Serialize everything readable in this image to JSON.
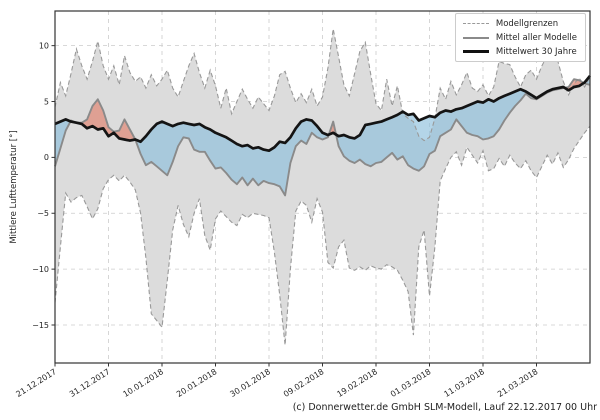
{
  "footer": "(c) Donnerwetter.de GmbH SLM-Modell, Lauf 22.12.2017 00 Uhr",
  "colors": {
    "envelope_fill": "#dcdcdc",
    "envelope_edge": "#999999",
    "model_mean_line": "#8a8a8a",
    "mean30_line": "#141414",
    "warm_fill": "rgba(225,128,108,0.65)",
    "cold_fill": "rgba(140,190,220,0.65)",
    "grid": "#cccccc",
    "frame": "#333333",
    "text": "#262626"
  },
  "chart_data": {
    "type": "line",
    "title": "",
    "xlabel": "",
    "ylabel": "Mittlere Lufttemperatur [°]",
    "grid": true,
    "xlim_days": [
      0,
      100
    ],
    "ylim": [
      -18.4,
      13.1
    ],
    "x": {
      "start_date": "21.12.2017",
      "end_date": "31.03.2018",
      "step_days": 1,
      "n_points": 101
    },
    "x_tick_days": [
      0,
      10,
      20,
      30,
      40,
      50,
      60,
      70,
      80,
      90
    ],
    "x_tick_labels": [
      "21.12.2017",
      "31.12.2017",
      "10.01.2018",
      "20.01.2018",
      "30.01.2018",
      "09.02.2018",
      "19.02.2018",
      "01.03.2018",
      "11.03.2018",
      "21.03.2018"
    ],
    "y_tick_values": [
      10,
      5,
      0,
      -5,
      -10,
      -15
    ],
    "y_tick_labels": [
      "10",
      "5",
      "0",
      "−5",
      "−10",
      "−15"
    ],
    "legend": {
      "position": "upper right",
      "entries": [
        "Modellgrenzen",
        "Mittel aller Modelle",
        "Mittelwert 30 Jahre"
      ]
    },
    "series": [
      {
        "name": "Modellgrenzen (obere Grenze)",
        "role": "upper_bound",
        "line": "dashed-gray",
        "values": [
          4.5,
          6.7,
          5.5,
          7.5,
          9.7,
          8.2,
          7.0,
          8.6,
          10.4,
          8.2,
          7.0,
          8.2,
          6.5,
          9.1,
          7.6,
          6.8,
          7.2,
          6.2,
          7.4,
          6.4,
          7.0,
          7.8,
          6.2,
          5.4,
          6.8,
          8.2,
          9.3,
          7.6,
          6.2,
          7.8,
          6.4,
          4.4,
          6.2,
          3.9,
          5.0,
          6.1,
          5.2,
          4.4,
          5.4,
          4.8,
          4.2,
          5.5,
          7.4,
          7.7,
          6.2,
          4.9,
          5.7,
          4.9,
          6.1,
          4.6,
          5.4,
          8.0,
          11.5,
          9.0,
          6.5,
          5.5,
          7.5,
          9.5,
          10.3,
          7.5,
          4.8,
          4.2,
          7.0,
          4.6,
          6.4,
          3.9,
          3.5,
          3.2,
          1.9,
          1.5,
          1.8,
          3.5,
          6.2,
          5.2,
          6.8,
          5.6,
          6.5,
          7.6,
          6.2,
          5.9,
          6.5,
          5.5,
          6.3,
          8.6,
          8.4,
          8.3,
          7.2,
          6.3,
          7.4,
          7.8,
          7.0,
          8.2,
          9.1,
          8.8,
          8.6,
          6.8,
          5.6,
          6.6,
          7.1,
          6.3,
          7.2
        ]
      },
      {
        "name": "Modellgrenzen (untere Grenze)",
        "role": "lower_bound",
        "line": "dashed-gray",
        "values": [
          -13.0,
          -8.0,
          -3.2,
          -4.0,
          -3.6,
          -3.4,
          -4.4,
          -5.5,
          -4.6,
          -2.8,
          -2.0,
          -1.6,
          -2.1,
          -1.6,
          -2.2,
          -2.9,
          -5.0,
          -9.0,
          -14.0,
          -14.6,
          -15.2,
          -11.0,
          -6.5,
          -4.3,
          -6.0,
          -7.1,
          -5.0,
          -3.7,
          -7.0,
          -8.3,
          -5.5,
          -4.8,
          -5.3,
          -5.8,
          -6.1,
          -5.1,
          -5.4,
          -5.0,
          -5.1,
          -5.2,
          -5.4,
          -8.5,
          -12.3,
          -16.8,
          -10.0,
          -4.8,
          -3.9,
          -4.3,
          -5.8,
          -3.7,
          -4.9,
          -9.4,
          -9.9,
          -8.0,
          -7.4,
          -9.9,
          -10.1,
          -9.8,
          -10.1,
          -9.7,
          -9.9,
          -10.0,
          -9.6,
          -9.8,
          -10.1,
          -11.0,
          -12.0,
          -15.9,
          -8.0,
          -6.5,
          -12.4,
          -8.0,
          -2.1,
          -1.0,
          0.0,
          0.5,
          -0.7,
          0.9,
          0.2,
          -0.5,
          0.6,
          -1.2,
          -1.0,
          -0.1,
          -0.8,
          0.2,
          -0.5,
          -1.0,
          -0.3,
          -1.2,
          -1.8,
          -0.8,
          0.2,
          -0.6,
          0.4,
          -0.9,
          -0.2,
          0.8,
          1.5,
          2.2,
          2.8
        ]
      },
      {
        "name": "Mittel aller Modelle",
        "role": "model_mean",
        "line": "solid-gray",
        "values": [
          -0.8,
          0.8,
          2.4,
          3.3,
          3.1,
          3.1,
          3.4,
          4.6,
          5.2,
          4.2,
          2.7,
          2.3,
          2.4,
          3.4,
          2.5,
          1.6,
          0.3,
          -0.7,
          -0.4,
          -0.8,
          -1.2,
          -1.6,
          -0.4,
          1.0,
          1.8,
          1.7,
          0.7,
          0.5,
          0.5,
          -0.3,
          -1.0,
          -0.9,
          -1.4,
          -2.0,
          -2.4,
          -1.8,
          -2.5,
          -1.9,
          -2.5,
          -2.1,
          -2.3,
          -2.4,
          -2.6,
          -3.4,
          -0.5,
          1.0,
          1.5,
          1.2,
          2.2,
          1.8,
          1.6,
          1.8,
          3.2,
          1.0,
          0.1,
          -0.3,
          -0.5,
          -0.2,
          -0.6,
          -0.8,
          -0.5,
          -0.4,
          0.0,
          0.4,
          -0.2,
          0.1,
          -0.7,
          -1.0,
          -1.2,
          -0.8,
          0.3,
          0.6,
          1.9,
          2.2,
          2.5,
          3.4,
          2.8,
          2.2,
          2.0,
          1.9,
          1.6,
          1.7,
          1.9,
          2.5,
          3.3,
          4.0,
          4.6,
          5.1,
          5.7,
          5.3,
          5.2,
          5.5,
          5.8,
          6.0,
          6.1,
          6.2,
          6.3,
          7.0,
          6.9,
          6.6,
          6.5
        ]
      },
      {
        "name": "Mittelwert 30 Jahre",
        "role": "climate_mean_30y",
        "line": "solid-black-bold",
        "values": [
          3.0,
          3.2,
          3.4,
          3.2,
          3.1,
          3.0,
          2.6,
          2.8,
          2.5,
          2.6,
          1.9,
          2.2,
          1.7,
          1.6,
          1.5,
          1.6,
          1.4,
          1.9,
          2.5,
          3.0,
          3.2,
          3.0,
          2.8,
          3.0,
          3.1,
          3.0,
          2.9,
          3.0,
          2.7,
          2.5,
          2.2,
          2.0,
          1.8,
          1.5,
          1.2,
          1.0,
          1.1,
          0.8,
          0.9,
          0.7,
          0.6,
          0.9,
          1.4,
          1.3,
          1.8,
          2.6,
          3.2,
          3.4,
          3.3,
          2.8,
          2.2,
          2.0,
          2.2,
          1.9,
          2.0,
          1.8,
          1.7,
          2.0,
          2.9,
          3.0,
          3.1,
          3.2,
          3.4,
          3.6,
          3.8,
          4.1,
          3.8,
          3.9,
          3.3,
          3.5,
          3.7,
          3.6,
          4.0,
          4.2,
          4.1,
          4.3,
          4.4,
          4.6,
          4.8,
          5.0,
          4.9,
          5.2,
          5.0,
          5.3,
          5.5,
          5.7,
          5.9,
          6.1,
          5.9,
          5.6,
          5.3,
          5.6,
          5.9,
          6.1,
          6.2,
          6.3,
          6.0,
          6.3,
          6.4,
          6.7,
          7.3
        ]
      }
    ],
    "fills": [
      {
        "name": "Modellgrenzen-Bereich",
        "between": [
          "upper_bound",
          "lower_bound"
        ],
        "color_key": "envelope_fill"
      },
      {
        "name": "waermer als Mittelwert",
        "between": [
          "model_mean",
          "climate_mean_30y"
        ],
        "where": "model_mean > climate_mean_30y",
        "color_key": "warm_fill"
      },
      {
        "name": "kaelter als Mittelwert",
        "between": [
          "model_mean",
          "climate_mean_30y"
        ],
        "where": "model_mean < climate_mean_30y",
        "color_key": "cold_fill"
      }
    ]
  }
}
